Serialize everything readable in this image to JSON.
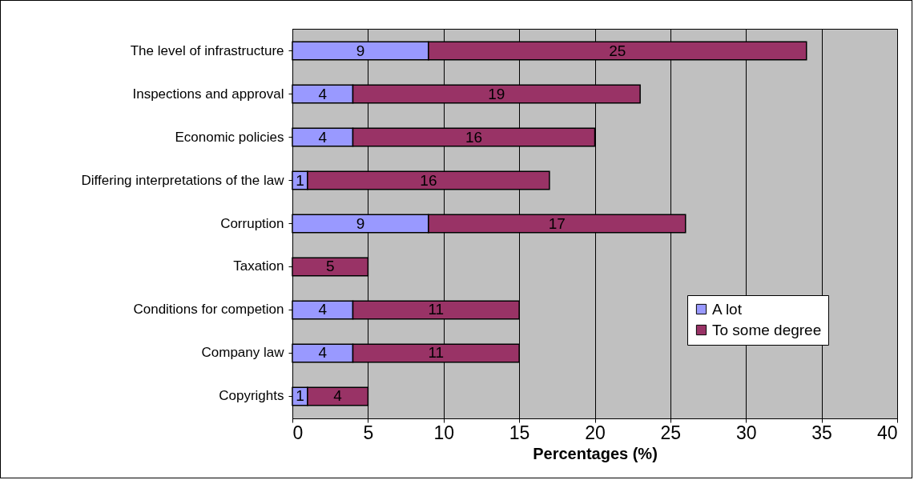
{
  "chart_data": {
    "type": "bar",
    "orientation": "horizontal",
    "stacked": true,
    "xlabel": "Percentages (%)",
    "categories": [
      "The level of infrastructure",
      "Inspections and approval",
      "Economic policies",
      "Differing interpretations of the law",
      "Corruption",
      "Taxation",
      "Conditions for competion",
      "Company law",
      "Copyrights"
    ],
    "series": [
      {
        "name": "A lot",
        "color": "#9999ff",
        "values": [
          9,
          4,
          4,
          1,
          9,
          null,
          4,
          4,
          1
        ]
      },
      {
        "name": "To some degree",
        "color": "#993366",
        "values": [
          25,
          19,
          16,
          16,
          17,
          5,
          11,
          11,
          4
        ]
      }
    ],
    "xlim": [
      0,
      40
    ],
    "xticks": [
      0,
      5,
      10,
      15,
      20,
      25,
      30,
      35,
      40
    ],
    "grid": "x",
    "legend": "bottom right",
    "data_labels": true
  }
}
